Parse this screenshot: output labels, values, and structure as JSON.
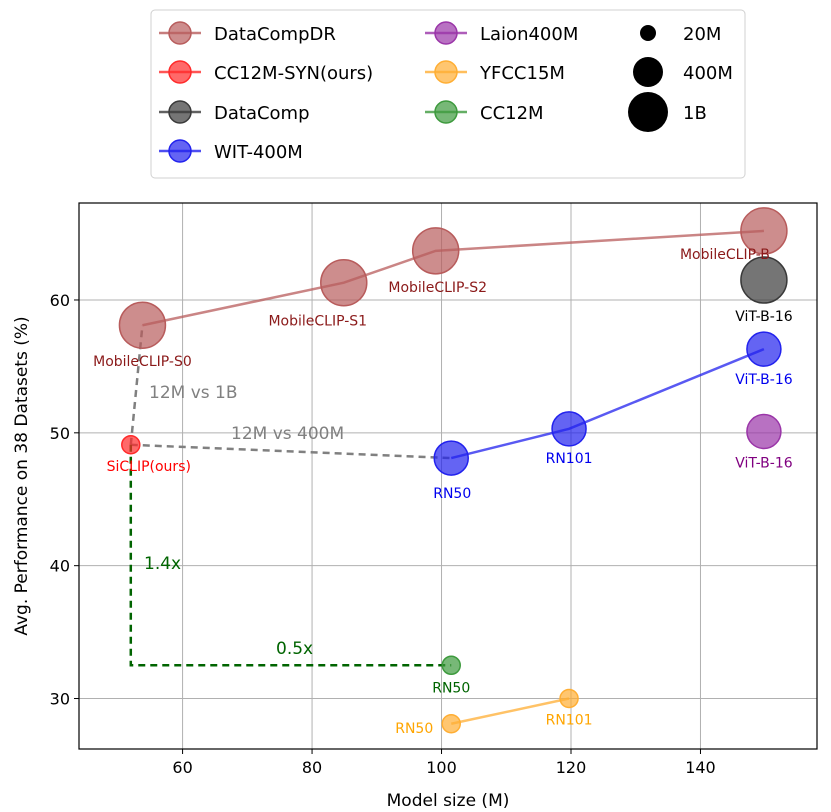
{
  "chart_data": {
    "type": "scatter",
    "xlabel": "Model size (M)",
    "ylabel": "Avg. Performance on 38 Datasets (%)",
    "xlim": [
      44,
      158
    ],
    "ylim": [
      26.2,
      67.3
    ],
    "xticks": [
      60,
      80,
      100,
      120,
      140
    ],
    "yticks": [
      30,
      40,
      50,
      60
    ],
    "grid": true,
    "legend_position": "top-center",
    "series": [
      {
        "name": "DataCompDR",
        "color": "#b85c5c",
        "connected": true,
        "points": [
          {
            "x": 53.8,
            "y": 58.1,
            "size": "1B",
            "label": "MobileCLIP-S0"
          },
          {
            "x": 84.9,
            "y": 61.3,
            "size": "1B",
            "label": "MobileCLIP-S1"
          },
          {
            "x": 99.1,
            "y": 63.7,
            "size": "1B",
            "label": "MobileCLIP-S2"
          },
          {
            "x": 149.8,
            "y": 65.2,
            "size": "1B",
            "label": "MobileCLIP-B"
          }
        ]
      },
      {
        "name": "CC12M-SYN(ours)",
        "color": "#ff2a2a",
        "connected": false,
        "points": [
          {
            "x": 52.0,
            "y": 49.1,
            "size": "20M",
            "label": "SiCLIP(ours)"
          }
        ]
      },
      {
        "name": "DataComp",
        "color": "#3a3a3a",
        "connected": false,
        "points": [
          {
            "x": 149.8,
            "y": 61.5,
            "size": "1B",
            "label": "ViT-B-16"
          }
        ]
      },
      {
        "name": "WIT-400M",
        "color": "#2222ee",
        "connected": true,
        "points": [
          {
            "x": 101.5,
            "y": 48.1,
            "size": "400M",
            "label": "RN50"
          },
          {
            "x": 119.7,
            "y": 50.3,
            "size": "400M",
            "label": "RN101"
          },
          {
            "x": 149.8,
            "y": 56.3,
            "size": "400M",
            "label": "ViT-B-16"
          }
        ]
      },
      {
        "name": "Laion400M",
        "color": "#9a35a8",
        "connected": false,
        "points": [
          {
            "x": 149.8,
            "y": 50.1,
            "size": "400M",
            "label": "ViT-B-16"
          }
        ]
      },
      {
        "name": "YFCC15M",
        "color": "#ffae33",
        "connected": true,
        "points": [
          {
            "x": 101.5,
            "y": 28.1,
            "size": "20M",
            "label": "RN50"
          },
          {
            "x": 119.7,
            "y": 30.0,
            "size": "20M",
            "label": "RN101"
          }
        ]
      },
      {
        "name": "CC12M",
        "color": "#3d9a3d",
        "connected": false,
        "points": [
          {
            "x": 101.5,
            "y": 32.5,
            "size": "20M",
            "label": "RN50"
          }
        ]
      }
    ],
    "size_legend": [
      "20M",
      "400M",
      "1B"
    ],
    "annotations": [
      {
        "text": "12M vs 1B",
        "color": "#808080"
      },
      {
        "text": "12M vs 400M",
        "color": "#808080"
      },
      {
        "text": "1.4x",
        "color": "#006400"
      },
      {
        "text": "0.5x",
        "color": "#006400"
      }
    ]
  }
}
